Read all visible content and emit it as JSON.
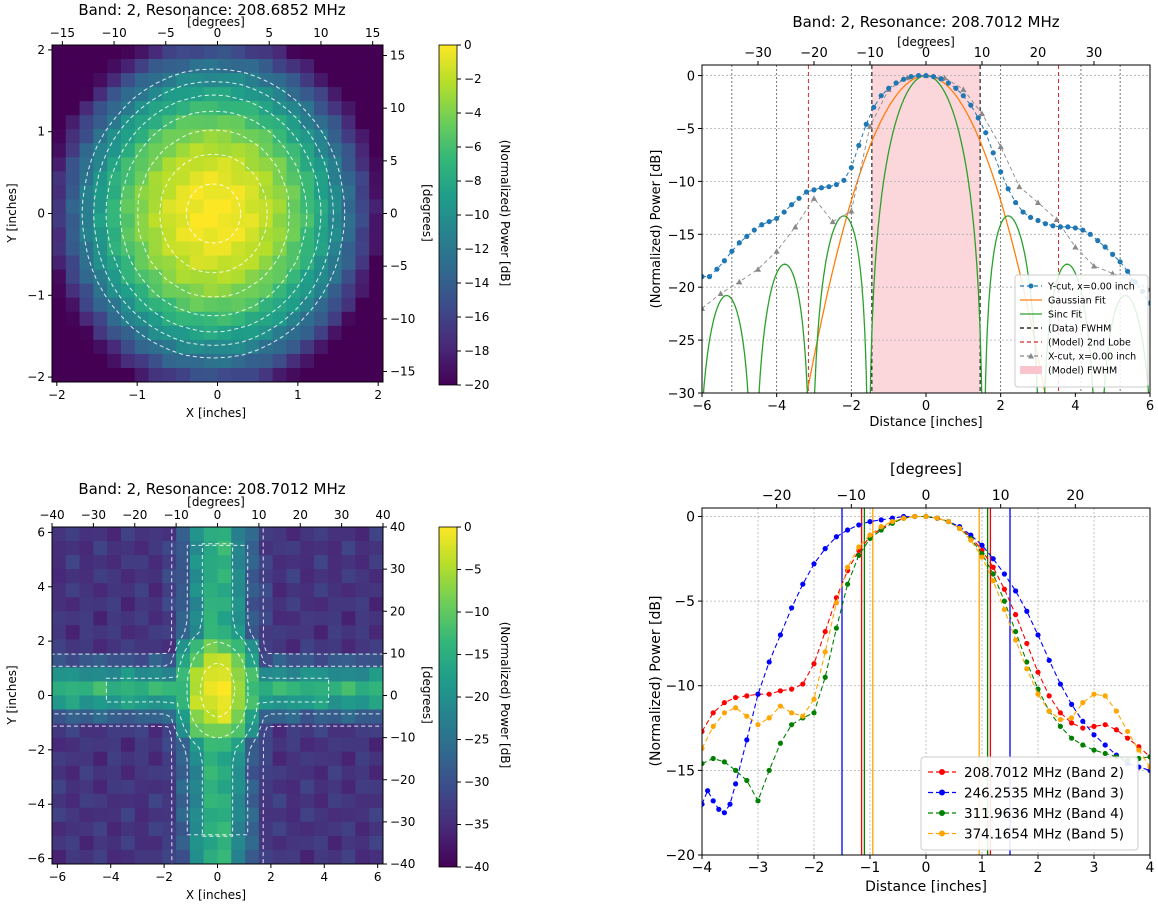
{
  "chart_data": [
    {
      "type": "heatmap",
      "title": "Band: 2, Resonance: 208.6852 MHz",
      "xlabel": "X [inches]",
      "ylabel": "Y [inches]",
      "top_label": "[degrees]",
      "right_label": "[degrees]",
      "cbar_label": "(Normalized) Power [dB]",
      "xlim": [
        -2.06,
        2.06
      ],
      "ylim": [
        -2.06,
        2.06
      ],
      "top_lim": [
        -16,
        16
      ],
      "right_lim": [
        -16,
        16
      ],
      "x_ticks": [
        -2,
        -1,
        0,
        1,
        2
      ],
      "y_ticks": [
        -2,
        -1,
        0,
        1,
        2
      ],
      "top_ticks": [
        -15,
        -10,
        -5,
        0,
        5,
        10,
        15
      ],
      "right_ticks": [
        -15,
        -10,
        -5,
        0,
        5,
        10,
        15
      ],
      "cbar_range": [
        -20,
        0
      ],
      "cbar_ticks": [
        0,
        -2,
        -4,
        -6,
        -8,
        -10,
        -12,
        -14,
        -16,
        -18,
        -20
      ],
      "peak": {
        "x": -0.05,
        "y": 0.0
      },
      "grid_cells": 24,
      "contour_levels": [
        -0.5,
        -2,
        -4,
        -6,
        -8,
        -10,
        -12
      ],
      "colormap": [
        "#440154",
        "#482878",
        "#3e4989",
        "#31688e",
        "#26828e",
        "#1f9e89",
        "#35b779",
        "#6ece58",
        "#b5de2b",
        "#fde725"
      ]
    },
    {
      "type": "line",
      "title": "Band: 2, Resonance: 208.7012 MHz",
      "xlabel": "Distance [inches]",
      "ylabel": "(Normalized) Power [dB]",
      "top_label": "[degrees]",
      "xlim": [
        -6,
        6
      ],
      "ylim": [
        -30,
        1
      ],
      "top_lim": [
        -40,
        40
      ],
      "x_ticks": [
        -6,
        -4,
        -2,
        0,
        2,
        4,
        6
      ],
      "y_ticks": [
        0,
        -5,
        -10,
        -15,
        -20,
        -25,
        -30
      ],
      "top_ticks": [
        -30,
        -20,
        -10,
        0,
        10,
        20,
        30
      ],
      "fwhm_band": [
        -1.45,
        1.45
      ],
      "data_fwhm_lines": [
        -1.45,
        1.45
      ],
      "second_lobe_lines": [
        -3.15,
        3.55
      ],
      "vertical_lines": [
        -5.2,
        -4,
        -2,
        2,
        4.15,
        5.2
      ],
      "series": [
        {
          "name": "Y-cut, x=0.00 inch",
          "color": "#1f77b4",
          "marker": "circle",
          "x": [
            -6,
            -5.8,
            -5.6,
            -5.4,
            -5.2,
            -5,
            -4.8,
            -4.6,
            -4.4,
            -4.2,
            -4,
            -3.8,
            -3.6,
            -3.4,
            -3.2,
            -3,
            -2.8,
            -2.6,
            -2.4,
            -2.2,
            -2,
            -1.8,
            -1.6,
            -1.4,
            -1.2,
            -1,
            -0.8,
            -0.6,
            -0.4,
            -0.2,
            0,
            0.2,
            0.4,
            0.6,
            0.8,
            1,
            1.2,
            1.4,
            1.6,
            1.8,
            2,
            2.2,
            2.4,
            2.6,
            2.8,
            3,
            3.2,
            3.4,
            3.6,
            3.8,
            4,
            4.2,
            4.4,
            4.6,
            4.8,
            5,
            5.2,
            5.4,
            5.6,
            5.8,
            6
          ],
          "values": [
            -19,
            -19,
            -18.3,
            -17.5,
            -16.6,
            -15.8,
            -15.2,
            -14.6,
            -14.1,
            -13.8,
            -13.5,
            -12.9,
            -12.2,
            -11.6,
            -11.0,
            -10.8,
            -10.6,
            -10.5,
            -10.3,
            -9.9,
            -8.7,
            -6.6,
            -4.6,
            -3.0,
            -1.9,
            -1.2,
            -0.7,
            -0.35,
            -0.1,
            0,
            0,
            -0.1,
            -0.3,
            -0.7,
            -1.2,
            -1.9,
            -2.8,
            -4.0,
            -5.4,
            -7.3,
            -9.1,
            -10.7,
            -12.0,
            -12.9,
            -13.4,
            -13.7,
            -14.0,
            -14.2,
            -14.3,
            -14.3,
            -14.4,
            -14.6,
            -15.0,
            -15.6,
            -16.2,
            -16.9,
            -17.6,
            -18.5,
            -19.5,
            -20.4,
            -21.5
          ]
        },
        {
          "name": "Gaussian Fit",
          "color": "#ff7f0e",
          "kind": "gaussian",
          "sigma": 1.3,
          "range": [
            -3.6,
            3.6
          ]
        },
        {
          "name": "Sinc Fit",
          "color": "#2ca02c",
          "kind": "sinc",
          "width": 2.0,
          "range": [
            -6,
            6
          ]
        },
        {
          "name": "(Data) FWHM",
          "color": "#000000",
          "dash": "4,3"
        },
        {
          "name": "(Model) 2nd Lobe",
          "color": "#d62728",
          "dash": "4,3"
        },
        {
          "name": "X-cut, x=0.00 inch",
          "color": "#888888",
          "marker": "triangle",
          "x": [
            -6,
            -5.5,
            -5,
            -4.5,
            -4,
            -3.5,
            -3,
            -2.5,
            -2,
            -1.5,
            -1,
            -0.5,
            0,
            0.5,
            1,
            1.5,
            2,
            2.5,
            3,
            3.5,
            4,
            4.5,
            5,
            5.5,
            6
          ],
          "values": [
            -22,
            -20.6,
            -19.5,
            -18.3,
            -16.6,
            -14.3,
            -11.6,
            -13.8,
            -12.8,
            -4.8,
            -1.3,
            -0.2,
            0,
            -0.2,
            -1.3,
            -3.6,
            -6.7,
            -10.5,
            -12.0,
            -13.6,
            -16.2,
            -18.0,
            -18.7,
            -19.3,
            -20.2
          ]
        },
        {
          "name": "(Model) FWHM",
          "color": "#f9c4cb",
          "kind": "band"
        }
      ]
    },
    {
      "type": "heatmap",
      "title": "Band: 2, Resonance: 208.7012 MHz",
      "xlabel": "X [inches]",
      "ylabel": "Y [inches]",
      "top_label": "[degrees]",
      "right_label": "[degrees]",
      "cbar_label": "(Normalized) Power [dB]",
      "xlim": [
        -6.2,
        6.2
      ],
      "ylim": [
        -6.2,
        6.2
      ],
      "top_lim": [
        -40,
        40
      ],
      "right_lim": [
        -40,
        40
      ],
      "x_ticks": [
        -6,
        -4,
        -2,
        0,
        2,
        4,
        6
      ],
      "y_ticks": [
        -6,
        -4,
        -2,
        0,
        2,
        4,
        6
      ],
      "top_ticks": [
        -40,
        -30,
        -20,
        -10,
        0,
        10,
        20,
        30,
        40
      ],
      "right_ticks": [
        -40,
        -30,
        -20,
        -10,
        0,
        10,
        20,
        30,
        40
      ],
      "cbar_range": [
        -40,
        0
      ],
      "cbar_ticks": [
        0,
        -5,
        -10,
        -15,
        -20,
        -25,
        -30,
        -35,
        -40
      ],
      "peak": {
        "x": 0.0,
        "y": 0.2
      },
      "grid_cells": 24,
      "contour_levels": [
        -3,
        -10,
        -18,
        -26,
        -32
      ],
      "colormap": [
        "#440154",
        "#482878",
        "#3e4989",
        "#31688e",
        "#26828e",
        "#1f9e89",
        "#35b779",
        "#6ece58",
        "#b5de2b",
        "#fde725"
      ]
    },
    {
      "type": "line",
      "xlabel": "Distance [inches]",
      "ylabel": "(Normalized) Power [dB]",
      "top_label": "[degrees]",
      "xlim": [
        -4,
        4
      ],
      "ylim": [
        -20,
        0.5
      ],
      "top_lim": [
        -30,
        30
      ],
      "x_ticks": [
        -4,
        -3,
        -2,
        -1,
        0,
        1,
        2,
        3,
        4
      ],
      "y_ticks": [
        0,
        -5,
        -10,
        -15,
        -20
      ],
      "top_ticks": [
        -20,
        -10,
        0,
        10,
        20
      ],
      "series": [
        {
          "name": "208.7012 MHz (Band 2)",
          "color": "#ff0000",
          "fwhm": 1.15,
          "x": [
            -4,
            -3.8,
            -3.6,
            -3.4,
            -3.2,
            -3,
            -2.8,
            -2.6,
            -2.4,
            -2.2,
            -2,
            -1.8,
            -1.6,
            -1.4,
            -1.2,
            -1,
            -0.8,
            -0.6,
            -0.4,
            -0.2,
            0,
            0.2,
            0.4,
            0.6,
            0.8,
            1,
            1.2,
            1.4,
            1.6,
            1.8,
            2,
            2.2,
            2.4,
            2.6,
            2.8,
            3,
            3.2,
            3.4,
            3.6,
            3.8,
            4
          ],
          "values": [
            -12.7,
            -11.6,
            -11.0,
            -10.7,
            -10.6,
            -10.5,
            -10.5,
            -10.3,
            -10.2,
            -9.9,
            -8.7,
            -6.8,
            -4.8,
            -3.2,
            -2.0,
            -1.2,
            -0.7,
            -0.35,
            -0.1,
            0,
            0,
            -0.1,
            -0.3,
            -0.7,
            -1.2,
            -2.0,
            -3.0,
            -4.3,
            -5.8,
            -7.5,
            -9.2,
            -10.6,
            -11.6,
            -12.2,
            -12.5,
            -12.4,
            -12.3,
            -12.6,
            -13.1,
            -13.6,
            -14.2
          ]
        },
        {
          "name": "246.2535 MHz (Band 3)",
          "color": "#0000ff",
          "fwhm": 1.5,
          "x": [
            -4,
            -3.9,
            -3.8,
            -3.7,
            -3.6,
            -3.5,
            -3.4,
            -3.2,
            -3,
            -2.8,
            -2.6,
            -2.4,
            -2.2,
            -2,
            -1.8,
            -1.6,
            -1.4,
            -1.2,
            -1,
            -0.8,
            -0.6,
            -0.4,
            -0.2,
            0,
            0.2,
            0.4,
            0.6,
            0.8,
            1,
            1.2,
            1.4,
            1.6,
            1.8,
            2,
            2.2,
            2.4,
            2.6,
            2.8,
            3,
            3.2,
            3.4,
            3.6,
            3.8,
            4
          ],
          "values": [
            -17.0,
            -16.2,
            -16.8,
            -17.3,
            -17.5,
            -17.0,
            -15.8,
            -13.2,
            -10.5,
            -8.6,
            -7.0,
            -5.4,
            -4.0,
            -2.8,
            -1.9,
            -1.2,
            -0.8,
            -0.5,
            -0.3,
            -0.2,
            -0.1,
            0,
            0,
            0,
            -0.1,
            -0.3,
            -0.6,
            -1.1,
            -1.7,
            -2.5,
            -3.4,
            -4.4,
            -5.6,
            -7.0,
            -8.5,
            -9.9,
            -11.1,
            -12.1,
            -12.9,
            -13.5,
            -14.1,
            -14.6,
            -14.8,
            -15.0
          ]
        },
        {
          "name": "311.9636 MHz (Band 4)",
          "color": "#008000",
          "fwhm": 1.1,
          "x": [
            -4,
            -3.8,
            -3.6,
            -3.4,
            -3.2,
            -3,
            -2.8,
            -2.6,
            -2.4,
            -2.2,
            -2,
            -1.8,
            -1.6,
            -1.4,
            -1.2,
            -1,
            -0.8,
            -0.6,
            -0.4,
            -0.2,
            0,
            0.2,
            0.4,
            0.6,
            0.8,
            1,
            1.2,
            1.4,
            1.6,
            1.8,
            2,
            2.2,
            2.4,
            2.6,
            2.8,
            3,
            3.2,
            3.4,
            3.6,
            3.8,
            4
          ],
          "values": [
            -14.6,
            -14.3,
            -14.5,
            -15.0,
            -15.6,
            -16.8,
            -15.0,
            -13.4,
            -12.3,
            -11.9,
            -11.6,
            -9.5,
            -6.6,
            -4.0,
            -2.3,
            -1.3,
            -0.8,
            -0.4,
            -0.1,
            0,
            0,
            -0.1,
            -0.3,
            -0.7,
            -1.3,
            -2.2,
            -3.4,
            -5.0,
            -6.8,
            -8.6,
            -10.2,
            -11.5,
            -12.4,
            -13.1,
            -13.5,
            -13.8,
            -14.0,
            -14.2,
            -14.4,
            -14.3,
            -14.2
          ]
        },
        {
          "name": "374.1654 MHz (Band 5)",
          "color": "#ffa500",
          "fwhm": 0.95,
          "x": [
            -4,
            -3.8,
            -3.6,
            -3.4,
            -3.2,
            -3,
            -2.8,
            -2.6,
            -2.4,
            -2.2,
            -2,
            -1.8,
            -1.6,
            -1.4,
            -1.2,
            -1,
            -0.8,
            -0.6,
            -0.4,
            -0.2,
            0,
            0.2,
            0.4,
            0.6,
            0.8,
            1,
            1.2,
            1.4,
            1.6,
            1.8,
            2,
            2.2,
            2.4,
            2.6,
            2.8,
            3,
            3.2,
            3.4,
            3.6,
            3.8,
            4
          ],
          "values": [
            -13.7,
            -12.4,
            -11.6,
            -11.3,
            -11.8,
            -12.3,
            -11.9,
            -11.2,
            -11.6,
            -11.8,
            -10.8,
            -8.0,
            -5.1,
            -3.0,
            -1.8,
            -1.1,
            -0.6,
            -0.3,
            -0.1,
            0,
            0,
            -0.1,
            -0.3,
            -0.7,
            -1.4,
            -2.4,
            -3.8,
            -5.5,
            -7.3,
            -9.0,
            -10.5,
            -11.5,
            -12.0,
            -11.9,
            -11.0,
            -10.5,
            -10.6,
            -11.5,
            -12.7,
            -13.8,
            -14.8
          ]
        }
      ]
    }
  ]
}
